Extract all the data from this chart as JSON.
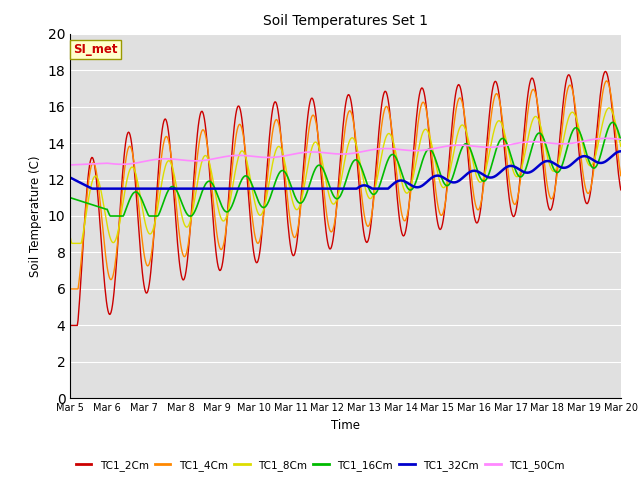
{
  "title": "Soil Temperatures Set 1",
  "xlabel": "Time",
  "ylabel": "Soil Temperature (C)",
  "ylim": [
    0,
    20
  ],
  "yticks": [
    0,
    2,
    4,
    6,
    8,
    10,
    12,
    14,
    16,
    18,
    20
  ],
  "date_labels": [
    "Mar 5",
    "Mar 6",
    "Mar 7",
    "Mar 8",
    "Mar 9",
    "Mar 10",
    "Mar 11",
    "Mar 12",
    "Mar 13",
    "Mar 14",
    "Mar 15",
    "Mar 16",
    "Mar 17",
    "Mar 18",
    "Mar 19",
    "Mar 20"
  ],
  "series_names": [
    "TC1_2Cm",
    "TC1_4Cm",
    "TC1_8Cm",
    "TC1_16Cm",
    "TC1_32Cm",
    "TC1_50Cm"
  ],
  "series_colors": [
    "#cc0000",
    "#ff8800",
    "#dddd00",
    "#00bb00",
    "#0000cc",
    "#ff88ff"
  ],
  "series_lw": [
    1.0,
    1.0,
    1.0,
    1.2,
    1.8,
    1.2
  ],
  "annotation_text": "SI_met",
  "annotation_color": "#cc0000",
  "annotation_bg": "#ffffcc",
  "plot_bg": "#e0e0e0",
  "fig_bg": "#ffffff",
  "grid_color": "#ffffff",
  "figsize": [
    6.4,
    4.8
  ],
  "dpi": 100
}
